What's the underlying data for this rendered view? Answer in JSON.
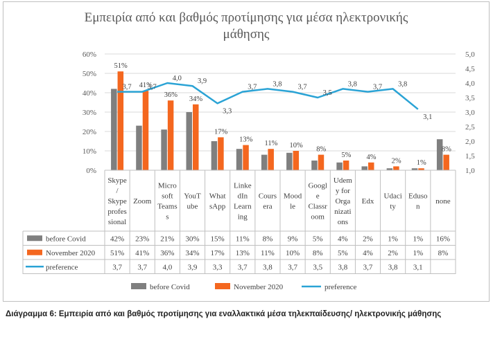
{
  "chart_data": {
    "type": "bar",
    "title": "Εμπειρία από και βαθμός προτίμησης για μέσα ηλεκτρονικής μάθησης",
    "categories": [
      "Skype / Skype professional",
      "Zoom",
      "Microsoft Teams",
      "YouTube",
      "WhatsApp",
      "LinkedIn Learning",
      "Coursera",
      "Moodle",
      "Google Classroom",
      "Udemy for Organizations",
      "Edx",
      "Udacity",
      "Eduson",
      "none"
    ],
    "category_label_lines": [
      [
        "Skype",
        "/",
        "Skype",
        "profes",
        "sional"
      ],
      [
        "Zoom"
      ],
      [
        "Micro",
        "soft",
        "Teams",
        "s"
      ],
      [
        "YouT",
        "ube"
      ],
      [
        "What",
        "sApp"
      ],
      [
        "Linke",
        "dIn",
        "Learn",
        "ing"
      ],
      [
        "Cours",
        "era"
      ],
      [
        "Mood",
        "le"
      ],
      [
        "Googl",
        "e",
        "Classr",
        "oom"
      ],
      [
        "Udem",
        "y for",
        "Orga",
        "nizati",
        "ons"
      ],
      [
        "Edx"
      ],
      [
        "Udaci",
        "ty"
      ],
      [
        "Eduso",
        "n"
      ],
      [
        "none"
      ]
    ],
    "series": [
      {
        "name": "before Covid",
        "type": "bar",
        "color": "#7f7f7f",
        "values": [
          42,
          23,
          21,
          30,
          15,
          11,
          8,
          9,
          5,
          4,
          2,
          1,
          1,
          16
        ],
        "labels": [
          "42%",
          "23%",
          "21%",
          "30%",
          "15%",
          "11%",
          "8%",
          "9%",
          "5%",
          "4%",
          "2%",
          "1%",
          "1%",
          "16%"
        ]
      },
      {
        "name": "November 2020",
        "type": "bar",
        "color": "#f4671f",
        "values": [
          51,
          41,
          36,
          34,
          17,
          13,
          11,
          10,
          8,
          5,
          4,
          2,
          1,
          8
        ],
        "labels": [
          "51%",
          "41%",
          "36%",
          "34%",
          "17%",
          "13%",
          "11%",
          "10%",
          "8%",
          "5%",
          "4%",
          "2%",
          "1%",
          "8%"
        ]
      },
      {
        "name": "preference",
        "type": "line",
        "axis": "right",
        "color": "#2aa3d5",
        "values": [
          3.7,
          3.7,
          4.0,
          3.9,
          3.3,
          3.7,
          3.8,
          3.7,
          3.5,
          3.8,
          3.7,
          3.8,
          3.1,
          null
        ],
        "labels": [
          "3,7",
          "3,7",
          "4,0",
          "3,9",
          "3,3",
          "3,7",
          "3,8",
          "3,7",
          "3,5",
          "3,8",
          "3,7",
          "3,8",
          "3,1",
          ""
        ]
      }
    ],
    "yaxis_left": {
      "min": 0,
      "max": 60,
      "ticks": [
        "0%",
        "10%",
        "20%",
        "30%",
        "40%",
        "50%",
        "60%"
      ]
    },
    "yaxis_right": {
      "min": 1.0,
      "max": 5.0,
      "ticks": [
        "1,0",
        "1,5",
        "2,0",
        "2,5",
        "3,0",
        "3,5",
        "4,0",
        "4,5",
        "5,0"
      ]
    },
    "grid": true,
    "legend_position": "bottom",
    "data_table": true
  },
  "caption": "Διάγραμμα 6: Εμπειρία από και βαθμός προτίμησης για εναλλακτικά μέσα τηλεκπαίδευσης/ ηλεκτρονικής μάθησης"
}
